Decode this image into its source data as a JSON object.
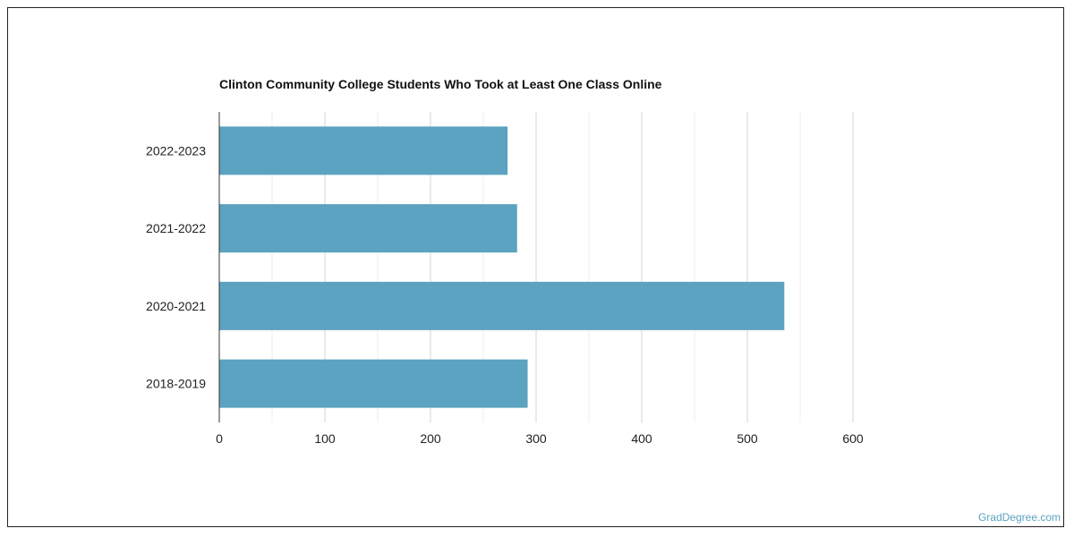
{
  "chart_data": {
    "type": "bar",
    "orientation": "horizontal",
    "title": "Clinton Community College Students Who Took at Least One Class Online",
    "categories": [
      "2022-2023",
      "2021-2022",
      "2020-2021",
      "2018-2019"
    ],
    "values": [
      273,
      282,
      535,
      292
    ],
    "xlim": [
      0,
      600
    ],
    "xticks": [
      0,
      100,
      200,
      300,
      400,
      500,
      600
    ],
    "xlabel": "",
    "ylabel": "",
    "grid": true,
    "bar_color": "#5ba3c0"
  },
  "footer": {
    "source": "GradDegree.com"
  }
}
